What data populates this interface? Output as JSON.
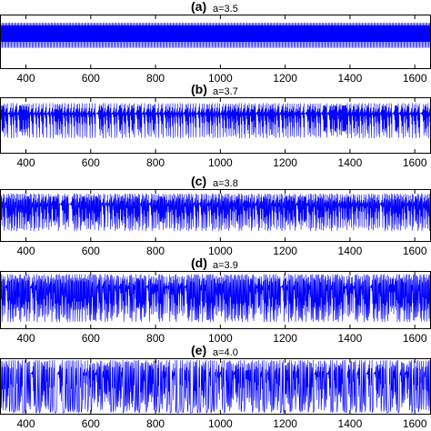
{
  "chart_data": [
    {
      "type": "line",
      "panel_label": "(a)",
      "parameter_label": "a=3.5",
      "xlim": [
        320,
        1650
      ],
      "ylim": [
        0,
        1
      ],
      "x_ticks": [
        400,
        600,
        800,
        1000,
        1200,
        1400,
        1600
      ],
      "x_tick_labels": [
        "400",
        "600",
        "800",
        "1000",
        "1200",
        "1400",
        "1600"
      ],
      "grid": false,
      "series_color": "#0000ff",
      "a": 3.5
    },
    {
      "type": "line",
      "panel_label": "(b)",
      "parameter_label": "a=3.7",
      "xlim": [
        320,
        1650
      ],
      "ylim": [
        0,
        1
      ],
      "x_ticks": [
        400,
        600,
        800,
        1000,
        1200,
        1400,
        1600
      ],
      "x_tick_labels": [
        "400",
        "600",
        "800",
        "1000",
        "1200",
        "1400",
        "1600"
      ],
      "grid": false,
      "series_color": "#0000ff",
      "a": 3.7
    },
    {
      "type": "line",
      "panel_label": "(c)",
      "parameter_label": "a=3.8",
      "xlim": [
        320,
        1650
      ],
      "ylim": [
        0,
        1
      ],
      "x_ticks": [
        400,
        600,
        800,
        1000,
        1200,
        1400,
        1600
      ],
      "x_tick_labels": [
        "400",
        "600",
        "800",
        "1000",
        "1200",
        "1400",
        "1600"
      ],
      "grid": false,
      "series_color": "#0000ff",
      "a": 3.8
    },
    {
      "type": "line",
      "panel_label": "(d)",
      "parameter_label": "a=3.9",
      "xlim": [
        320,
        1650
      ],
      "ylim": [
        0,
        1
      ],
      "x_ticks": [
        400,
        600,
        800,
        1000,
        1200,
        1400,
        1600
      ],
      "x_tick_labels": [
        "400",
        "600",
        "800",
        "1000",
        "1200",
        "1400",
        "1600"
      ],
      "grid": false,
      "series_color": "#0000ff",
      "a": 3.9
    },
    {
      "type": "line",
      "panel_label": "(e)",
      "parameter_label": "a=4.0",
      "xlim": [
        320,
        1650
      ],
      "ylim": [
        0,
        1
      ],
      "x_ticks": [
        400,
        600,
        800,
        1000,
        1200,
        1400,
        1600
      ],
      "x_tick_labels": [
        "400",
        "600",
        "800",
        "1000",
        "1200",
        "1400",
        "1600"
      ],
      "grid": false,
      "series_color": "#0000ff",
      "a": 4.0
    }
  ]
}
